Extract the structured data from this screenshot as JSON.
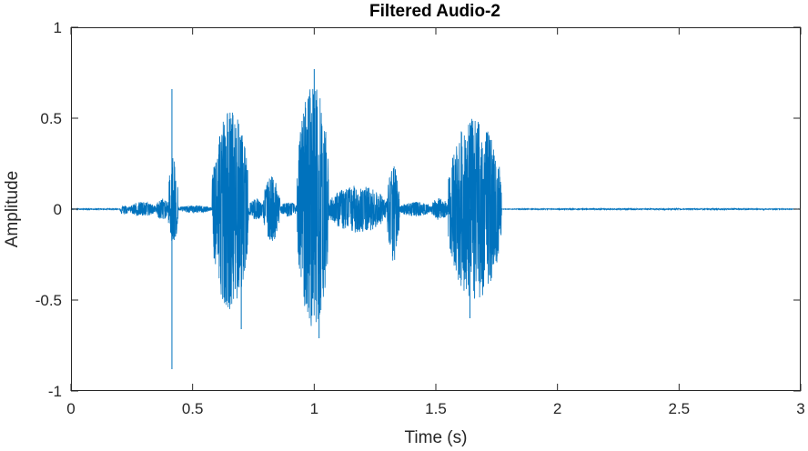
{
  "chart_data": {
    "type": "line",
    "title": "Filtered Audio-2",
    "xlabel": "Time (s)",
    "ylabel": "Amplitude",
    "xlim": [
      0,
      3
    ],
    "ylim": [
      -1,
      1
    ],
    "xticks": [
      0,
      0.5,
      1,
      1.5,
      2,
      2.5,
      3
    ],
    "xtick_labels": [
      "0",
      "0.5",
      "1",
      "1.5",
      "2",
      "2.5",
      "3"
    ],
    "yticks": [
      1,
      0.5,
      0,
      -0.5,
      -1
    ],
    "ytick_labels": [
      "1",
      "0.5",
      "0",
      "-0.5",
      "-1"
    ],
    "grid": false,
    "legend": "none",
    "line_color": "#0072BD",
    "series": [
      {
        "envelope_segments": [
          {
            "t_start": 0,
            "t_end": 0.2,
            "pos_peak": 0.003,
            "neg_peak": -0.003
          },
          {
            "t_start": 0.2,
            "t_end": 0.24,
            "pos_peak": 0.02,
            "neg_peak": -0.03
          },
          {
            "t_start": 0.24,
            "t_end": 0.35,
            "pos_peak": 0.04,
            "neg_peak": -0.04
          },
          {
            "t_start": 0.35,
            "t_end": 0.4,
            "pos_peak": 0.06,
            "neg_peak": -0.06
          },
          {
            "t_start": 0.4,
            "t_end": 0.44,
            "pos_peak": 0.3,
            "neg_peak": -0.2
          },
          {
            "t_start": 0.44,
            "t_end": 0.58,
            "pos_peak": 0.02,
            "neg_peak": -0.02
          },
          {
            "t_start": 0.58,
            "t_end": 0.73,
            "pos_peak": 0.55,
            "neg_peak": -0.55
          },
          {
            "t_start": 0.73,
            "t_end": 0.79,
            "pos_peak": 0.06,
            "neg_peak": -0.06
          },
          {
            "t_start": 0.79,
            "t_end": 0.86,
            "pos_peak": 0.18,
            "neg_peak": -0.18
          },
          {
            "t_start": 0.86,
            "t_end": 0.93,
            "pos_peak": 0.04,
            "neg_peak": -0.04
          },
          {
            "t_start": 0.93,
            "t_end": 1.06,
            "pos_peak": 0.7,
            "neg_peak": -0.65
          },
          {
            "t_start": 1.06,
            "t_end": 1.3,
            "pos_peak": 0.13,
            "neg_peak": -0.13
          },
          {
            "t_start": 1.3,
            "t_end": 1.35,
            "pos_peak": 0.24,
            "neg_peak": -0.3
          },
          {
            "t_start": 1.35,
            "t_end": 1.48,
            "pos_peak": 0.04,
            "neg_peak": -0.04
          },
          {
            "t_start": 1.48,
            "t_end": 1.55,
            "pos_peak": 0.06,
            "neg_peak": -0.06
          },
          {
            "t_start": 1.55,
            "t_end": 1.77,
            "pos_peak": 0.5,
            "neg_peak": -0.5
          },
          {
            "t_start": 1.77,
            "t_end": 3,
            "pos_peak": 0.003,
            "neg_peak": -0.003
          }
        ],
        "spikes": [
          {
            "t": 0.415,
            "value": 0.66
          },
          {
            "t": 0.415,
            "value": -0.88
          },
          {
            "t": 0.7,
            "value": -0.66
          },
          {
            "t": 1.0,
            "value": 0.77
          },
          {
            "t": 1.02,
            "value": -0.71
          },
          {
            "t": 1.64,
            "value": -0.6
          }
        ]
      }
    ]
  }
}
